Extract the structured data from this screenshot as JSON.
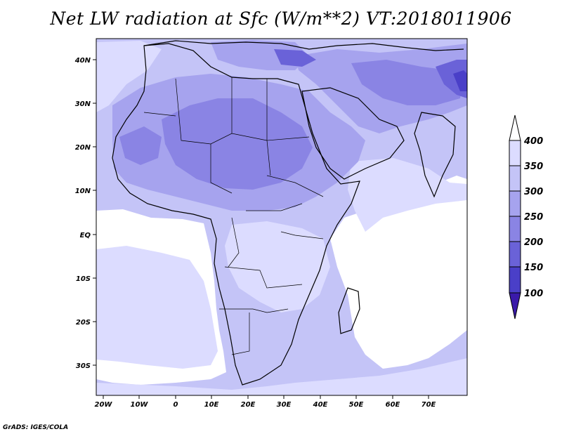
{
  "title": "Net LW radiation at Sfc (W/m**2) VT:2018011906",
  "footer": "GrADS: IGES/COLA",
  "colors": {
    "c_white": "#ffffff",
    "c_350_400": "#dcdcff",
    "c_300_350": "#c4c4f7",
    "c_250_300": "#a6a3ee",
    "c_200_250": "#8a84e4",
    "c_150_200": "#6a62d8",
    "c_100_150": "#4a3fc8",
    "c_below_100": "#3a1aaa",
    "coast": "#000000"
  },
  "map": {
    "lon_labels": [
      "20W",
      "10W",
      "0",
      "10E",
      "20E",
      "30E",
      "40E",
      "50E",
      "60E",
      "70E"
    ],
    "lat_labels": [
      "40N",
      "30N",
      "20N",
      "10N",
      "EQ",
      "10S",
      "20S",
      "30S"
    ]
  },
  "colorbar": {
    "labels": [
      "400",
      "350",
      "300",
      "250",
      "200",
      "150",
      "100"
    ]
  }
}
